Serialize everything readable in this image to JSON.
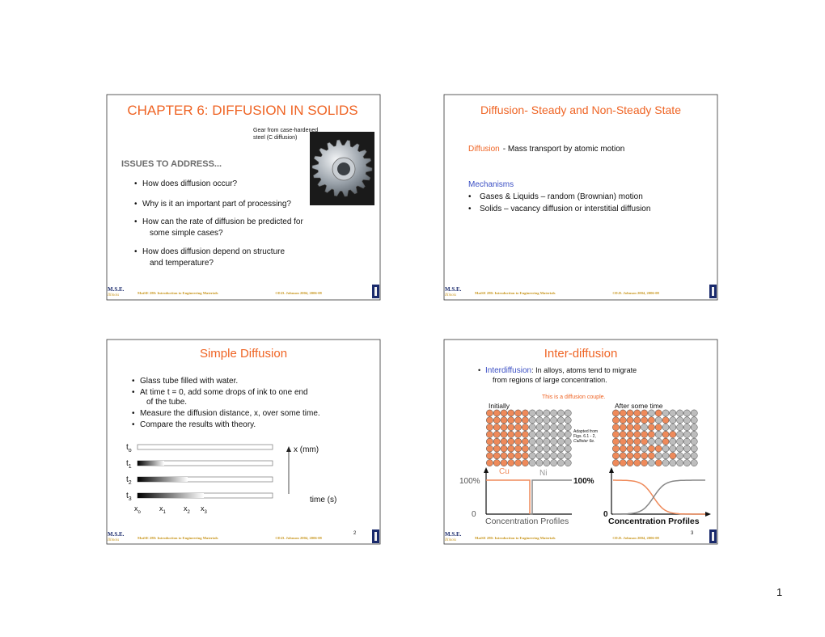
{
  "slides": [
    {
      "title": "CHAPTER 6: DIFFUSION IN SOLIDS",
      "image_caption": [
        "Gear from case-hardened",
        "steel (C diffusion)"
      ],
      "heading": "ISSUES TO ADDRESS...",
      "bullets": [
        [
          "How does diffusion occur?"
        ],
        [
          "Why is it an important part of processing?"
        ],
        [
          "How can the rate of diffusion be predicted for",
          "some simple cases?"
        ],
        [
          "How does diffusion depend on structure",
          "and temperature?"
        ]
      ]
    },
    {
      "title": "Diffusion- Steady and Non-Steady State",
      "definition": {
        "term": "Diffusion",
        "text": "-  Mass transport by atomic motion"
      },
      "heading": "Mechanisms",
      "bullets": [
        [
          "Gases & Liquids – random (Brownian) motion"
        ],
        [
          "Solids – vacancy diffusion or interstitial diffusion"
        ]
      ]
    },
    {
      "title": "Simple Diffusion",
      "bullets": [
        [
          "Glass tube filled with water."
        ],
        [
          "At time t = 0, add some drops of ink to one end",
          "of the tube."
        ],
        [
          "Measure the diffusion distance, x, over some time."
        ],
        [
          "Compare the results with theory."
        ]
      ],
      "figure": {
        "time_labels": [
          {
            "base": "t",
            "sub": "o"
          },
          {
            "base": "t",
            "sub": "1"
          },
          {
            "base": "t",
            "sub": "2"
          },
          {
            "base": "t",
            "sub": "3"
          }
        ],
        "position_labels": [
          {
            "base": "x",
            "sub": "o"
          },
          {
            "base": "x",
            "sub": "1"
          },
          {
            "base": "x",
            "sub": "2"
          },
          {
            "base": "x",
            "sub": "3"
          }
        ],
        "x_axis": "x (mm)",
        "time_axis": "time (s)"
      },
      "number": "2"
    },
    {
      "title": "Inter-diffusion",
      "bullet": {
        "term": "Interdiffusion",
        "text": ":  In alloys, atoms tend to migrate",
        "continuation": "from regions of large concentration."
      },
      "note": "This is a diffusion couple.",
      "initial_label": "Initially",
      "later_label": "After some time",
      "credit": [
        "Adapted from",
        "Figs. 6.1 - 2,",
        "Callister 6e."
      ],
      "left_profile": {
        "species": [
          "Cu",
          "Ni"
        ],
        "top": "100%",
        "bottom": "0",
        "caption": "Concentration Profiles"
      },
      "right_profile": {
        "top": "100%",
        "bottom": "0",
        "caption": "Concentration Profiles"
      },
      "number": "3"
    }
  ],
  "footer": {
    "logo": "M.S.E.",
    "logo_sub": "Illinois",
    "course": "MatSE 280: Introduction to Engineering Materials",
    "copyright": "©D.D. Johnson 2004, 2006-08"
  },
  "page_number": "1"
}
